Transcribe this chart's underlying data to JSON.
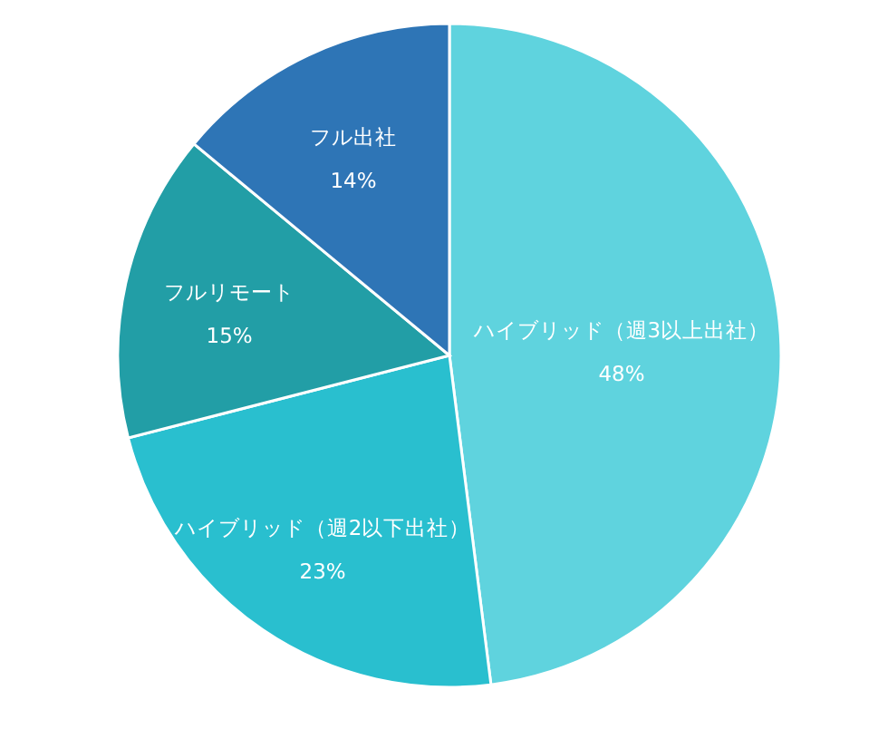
{
  "chart_data": {
    "type": "pie",
    "categories": [
      "ハイブリッド（週3以上出社）",
      "ハイブリッド（週2以下出社）",
      "フルリモート",
      "フル出社"
    ],
    "values": [
      48,
      23,
      15,
      14
    ],
    "colors": [
      "#5fd3de",
      "#29bfcf",
      "#229ea6",
      "#2e75b6"
    ],
    "value_labels": [
      "48%",
      "23%",
      "15%",
      "14%"
    ]
  }
}
